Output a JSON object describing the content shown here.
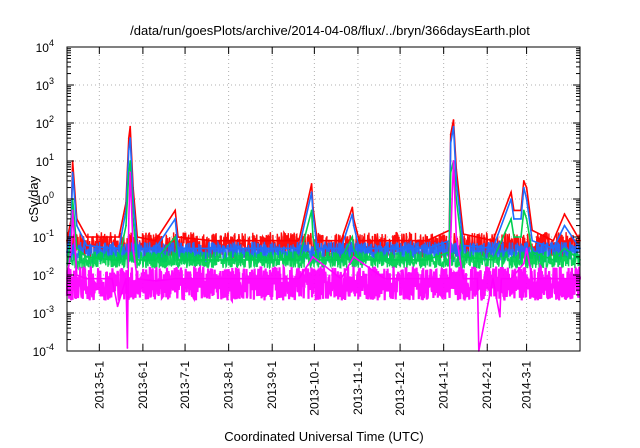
{
  "chart_data": {
    "type": "line",
    "title": "/data/run/goesPlots/archive/2014-04-08/flux/../bryn/366daysEarth.plot",
    "xlabel": "Coordinated Universal Time (UTC)",
    "ylabel": "cSv/day",
    "y_scale": "log",
    "ylim": [
      0.0001,
      10000
    ],
    "xlim": [
      "2013-04-08",
      "2014-04-08"
    ],
    "grid": true,
    "x_ticks": [
      "2013-5-1",
      "2013-6-1",
      "2013-7-1",
      "2013-8-1",
      "2013-9-1",
      "2013-10-1",
      "2013-11-1",
      "2013-12-1",
      "2014-1-1",
      "2014-2-1",
      "2014-3-1"
    ],
    "y_ticks": [
      {
        "base": "10",
        "exp": "-4",
        "value": 0.0001
      },
      {
        "base": "10",
        "exp": "-3",
        "value": 0.001
      },
      {
        "base": "10",
        "exp": "-2",
        "value": 0.01
      },
      {
        "base": "10",
        "exp": "-1",
        "value": 0.1
      },
      {
        "base": "10",
        "exp": "0",
        "value": 1
      },
      {
        "base": "10",
        "exp": "1",
        "value": 10
      },
      {
        "base": "10",
        "exp": "2",
        "value": 100
      },
      {
        "base": "10",
        "exp": "3",
        "value": 1000
      },
      {
        "base": "10",
        "exp": "4",
        "value": 10000
      }
    ],
    "series": [
      {
        "color": "#ff0000",
        "x": [
          "2013-04-08",
          "2013-04-11",
          "2013-04-12",
          "2013-04-15",
          "2013-04-22",
          "2013-05-10",
          "2013-05-15",
          "2013-05-20",
          "2013-05-22",
          "2013-05-23",
          "2013-05-25",
          "2013-05-28",
          "2013-06-10",
          "2013-06-24",
          "2013-06-26",
          "2013-07-20",
          "2013-08-20",
          "2013-09-20",
          "2013-09-29",
          "2013-09-30",
          "2013-10-03",
          "2013-10-20",
          "2013-10-28",
          "2013-10-29",
          "2013-11-02",
          "2013-11-20",
          "2013-12-20",
          "2014-01-05",
          "2014-01-06",
          "2014-01-08",
          "2014-01-10",
          "2014-01-15",
          "2014-02-05",
          "2014-02-18",
          "2014-02-20",
          "2014-02-25",
          "2014-02-27",
          "2014-03-01",
          "2014-03-05",
          "2014-03-20",
          "2014-03-28",
          "2014-04-08"
        ],
        "y": [
          0.08,
          0.3,
          10,
          0.3,
          0.1,
          0.1,
          0.1,
          0.8,
          40,
          80,
          2,
          0.1,
          0.08,
          0.5,
          0.1,
          0.08,
          0.08,
          0.08,
          2.5,
          0.6,
          0.08,
          0.08,
          0.6,
          0.3,
          0.08,
          0.08,
          0.08,
          0.15,
          50,
          120,
          6,
          0.12,
          0.08,
          1.5,
          0.5,
          0.5,
          3,
          2,
          0.15,
          0.08,
          0.4,
          0.08
        ]
      },
      {
        "color": "#1e6cff",
        "x": [
          "2013-04-08",
          "2013-04-11",
          "2013-04-12",
          "2013-04-15",
          "2013-04-22",
          "2013-05-10",
          "2013-05-15",
          "2013-05-20",
          "2013-05-22",
          "2013-05-23",
          "2013-05-25",
          "2013-05-28",
          "2013-06-10",
          "2013-06-24",
          "2013-06-26",
          "2013-07-20",
          "2013-08-20",
          "2013-09-20",
          "2013-09-29",
          "2013-09-30",
          "2013-10-03",
          "2013-10-20",
          "2013-10-28",
          "2013-10-29",
          "2013-11-02",
          "2013-11-20",
          "2013-12-20",
          "2014-01-05",
          "2014-01-06",
          "2014-01-08",
          "2014-01-10",
          "2014-01-15",
          "2014-02-05",
          "2014-02-18",
          "2014-02-20",
          "2014-02-25",
          "2014-02-27",
          "2014-03-01",
          "2014-03-05",
          "2014-03-20",
          "2014-03-28",
          "2014-04-08"
        ],
        "y": [
          0.04,
          0.2,
          5,
          0.2,
          0.06,
          0.05,
          0.05,
          0.5,
          20,
          40,
          1,
          0.05,
          0.05,
          0.3,
          0.05,
          0.05,
          0.05,
          0.05,
          1.5,
          0.4,
          0.05,
          0.05,
          0.4,
          0.2,
          0.05,
          0.05,
          0.05,
          0.08,
          30,
          80,
          3,
          0.06,
          0.05,
          1,
          0.3,
          0.3,
          2,
          1,
          0.08,
          0.05,
          0.2,
          0.05
        ]
      },
      {
        "color": "#00d050",
        "x": [
          "2013-04-08",
          "2013-04-11",
          "2013-04-12",
          "2013-04-15",
          "2013-04-22",
          "2013-05-10",
          "2013-05-15",
          "2013-05-20",
          "2013-05-22",
          "2013-05-23",
          "2013-05-25",
          "2013-05-28",
          "2013-06-10",
          "2013-06-24",
          "2013-06-26",
          "2013-07-20",
          "2013-08-20",
          "2013-09-20",
          "2013-09-29",
          "2013-09-30",
          "2013-10-03",
          "2013-10-20",
          "2013-10-28",
          "2013-10-29",
          "2013-11-02",
          "2013-11-20",
          "2013-12-20",
          "2014-01-05",
          "2014-01-06",
          "2014-01-08",
          "2014-01-10",
          "2014-01-15",
          "2014-02-05",
          "2014-02-18",
          "2014-02-20",
          "2014-02-25",
          "2014-02-27",
          "2014-03-01",
          "2014-03-05",
          "2014-03-20",
          "2014-03-28",
          "2014-04-08"
        ],
        "y": [
          0.02,
          0.1,
          1,
          0.05,
          0.03,
          0.025,
          0.025,
          0.2,
          5,
          10,
          0.3,
          0.025,
          0.025,
          0.1,
          0.025,
          0.025,
          0.025,
          0.025,
          0.5,
          0.1,
          0.025,
          0.025,
          0.1,
          0.05,
          0.025,
          0.025,
          0.025,
          0.04,
          5,
          10,
          1,
          0.03,
          0.025,
          0.3,
          0.1,
          0.1,
          0.5,
          0.3,
          0.04,
          0.025,
          0.05,
          0.025
        ]
      },
      {
        "color": "#ff00ff",
        "x": [
          "2013-04-08",
          "2013-04-11",
          "2013-04-12",
          "2013-04-15",
          "2013-04-22",
          "2013-05-10",
          "2013-05-14",
          "2013-05-20",
          "2013-05-21",
          "2013-05-22",
          "2013-05-23",
          "2013-05-25",
          "2013-05-28",
          "2013-06-10",
          "2013-06-24",
          "2013-07-20",
          "2013-08-20",
          "2013-09-20",
          "2013-09-30",
          "2013-10-20",
          "2013-10-29",
          "2013-11-20",
          "2013-12-20",
          "2014-01-05",
          "2014-01-07",
          "2014-01-08",
          "2014-01-10",
          "2014-01-15",
          "2014-01-25",
          "2014-01-26",
          "2014-02-05",
          "2014-02-10",
          "2014-02-11",
          "2014-02-18",
          "2014-02-27",
          "2014-03-01",
          "2014-03-05",
          "2014-03-20",
          "2014-03-28",
          "2014-04-08"
        ],
        "y": [
          0.008,
          0.05,
          0.5,
          0.01,
          0.008,
          0.008,
          0.0015,
          0.008,
          0.00012,
          0.3,
          5,
          0.05,
          0.008,
          0.007,
          0.008,
          0.008,
          0.008,
          0.008,
          0.03,
          0.008,
          0.03,
          0.008,
          0.008,
          0.008,
          1,
          10,
          0.1,
          0.008,
          0.008,
          0.0001,
          0.008,
          0.0008,
          0.008,
          0.008,
          0.02,
          0.05,
          0.008,
          0.008,
          0.008,
          0.008
        ]
      }
    ]
  }
}
